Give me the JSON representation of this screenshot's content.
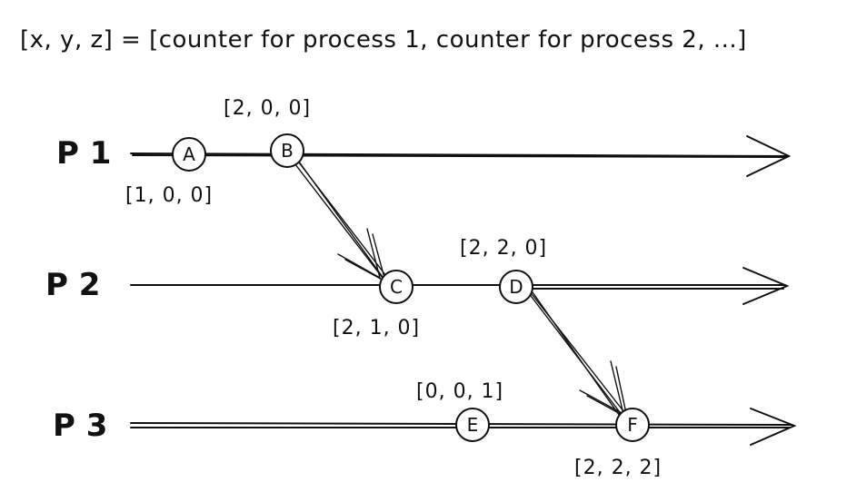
{
  "title": "[x, y, z] = [counter for process 1, counter for process 2, ...]",
  "processes": [
    {
      "id": "p1",
      "label": "P 1"
    },
    {
      "id": "p2",
      "label": "P 2"
    },
    {
      "id": "p3",
      "label": "P 3"
    }
  ],
  "events": [
    {
      "id": "A",
      "process": "p1",
      "letter": "A",
      "vector": "[1, 0, 0]"
    },
    {
      "id": "B",
      "process": "p1",
      "letter": "B",
      "vector": "[2, 0, 0]"
    },
    {
      "id": "C",
      "process": "p2",
      "letter": "C",
      "vector": "[2, 1, 0]"
    },
    {
      "id": "D",
      "process": "p2",
      "letter": "D",
      "vector": "[2, 2, 0]"
    },
    {
      "id": "E",
      "process": "p3",
      "letter": "E",
      "vector": "[0, 0, 1]"
    },
    {
      "id": "F",
      "process": "p3",
      "letter": "F",
      "vector": "[2, 2, 2]"
    }
  ],
  "messages": [
    {
      "from": "B",
      "to": "C"
    },
    {
      "from": "D",
      "to": "F"
    }
  ]
}
